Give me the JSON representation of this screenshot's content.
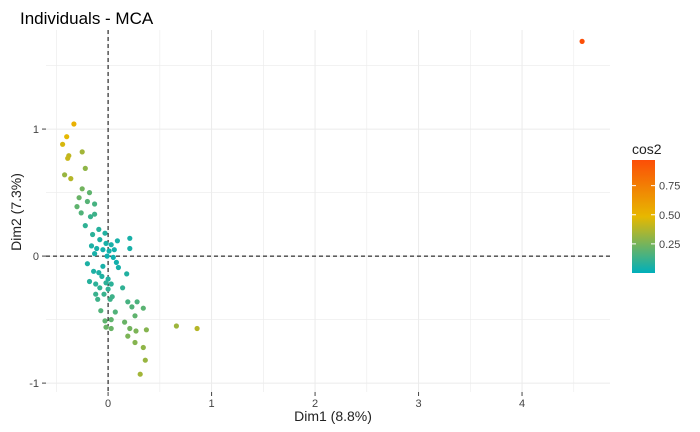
{
  "chart_data": {
    "type": "scatter",
    "title": "Individuals - MCA",
    "xlabel": "Dim1 (8.8%)",
    "ylabel": "Dim2 (7.3%)",
    "xlim": [
      -0.6,
      4.85
    ],
    "ylim": [
      -1.07,
      1.78
    ],
    "x_ticks": [
      0,
      1,
      2,
      3,
      4
    ],
    "y_ticks": [
      -1,
      0,
      1
    ],
    "grid": true,
    "reference_lines": {
      "x": 0,
      "y": 0,
      "style": "dashed"
    },
    "color_variable": "cos2",
    "legend": {
      "title": "cos2",
      "placement": "right",
      "ticks": [
        0.25,
        0.5,
        0.75
      ],
      "tick_labels": [
        "0.25",
        "0.50",
        "0.75"
      ],
      "range": [
        0.0,
        0.97
      ]
    },
    "color_scale": [
      "#00AFBB",
      "#E7B800",
      "#FC4E07"
    ],
    "points": [
      {
        "x": 4.58,
        "y": 1.69,
        "cos2": 0.97
      },
      {
        "x": -0.33,
        "y": 1.04,
        "cos2": 0.52
      },
      {
        "x": -0.4,
        "y": 0.94,
        "cos2": 0.48
      },
      {
        "x": -0.44,
        "y": 0.88,
        "cos2": 0.45
      },
      {
        "x": -0.38,
        "y": 0.79,
        "cos2": 0.4
      },
      {
        "x": -0.39,
        "y": 0.77,
        "cos2": 0.42
      },
      {
        "x": -0.25,
        "y": 0.82,
        "cos2": 0.34
      },
      {
        "x": -0.22,
        "y": 0.69,
        "cos2": 0.3
      },
      {
        "x": -0.42,
        "y": 0.64,
        "cos2": 0.32
      },
      {
        "x": -0.36,
        "y": 0.61,
        "cos2": 0.38
      },
      {
        "x": -0.25,
        "y": 0.53,
        "cos2": 0.24
      },
      {
        "x": -0.18,
        "y": 0.5,
        "cos2": 0.2
      },
      {
        "x": -0.28,
        "y": 0.46,
        "cos2": 0.22
      },
      {
        "x": -0.2,
        "y": 0.43,
        "cos2": 0.18
      },
      {
        "x": -0.3,
        "y": 0.39,
        "cos2": 0.2
      },
      {
        "x": -0.13,
        "y": 0.41,
        "cos2": 0.15
      },
      {
        "x": -0.26,
        "y": 0.34,
        "cos2": 0.17
      },
      {
        "x": -0.17,
        "y": 0.31,
        "cos2": 0.12
      },
      {
        "x": -0.13,
        "y": 0.33,
        "cos2": 0.13
      },
      {
        "x": -0.22,
        "y": 0.24,
        "cos2": 0.1
      },
      {
        "x": -0.09,
        "y": 0.21,
        "cos2": 0.08
      },
      {
        "x": -0.03,
        "y": 0.18,
        "cos2": 0.07
      },
      {
        "x": -0.15,
        "y": 0.17,
        "cos2": 0.09
      },
      {
        "x": 0.21,
        "y": 0.14,
        "cos2": 0.05
      },
      {
        "x": -0.08,
        "y": 0.13,
        "cos2": 0.06
      },
      {
        "x": -0.02,
        "y": 0.1,
        "cos2": 0.05
      },
      {
        "x": 0.03,
        "y": 0.09,
        "cos2": 0.05
      },
      {
        "x": 0.09,
        "y": 0.12,
        "cos2": 0.05
      },
      {
        "x": -0.16,
        "y": 0.08,
        "cos2": 0.06
      },
      {
        "x": -0.11,
        "y": 0.06,
        "cos2": 0.05
      },
      {
        "x": -0.05,
        "y": 0.05,
        "cos2": 0.04
      },
      {
        "x": 0.01,
        "y": 0.04,
        "cos2": 0.04
      },
      {
        "x": 0.06,
        "y": 0.05,
        "cos2": 0.04
      },
      {
        "x": 0.21,
        "y": 0.06,
        "cos2": 0.05
      },
      {
        "x": -0.13,
        "y": 0.02,
        "cos2": 0.05
      },
      {
        "x": -0.01,
        "y": 0.0,
        "cos2": 0.03
      },
      {
        "x": 0.05,
        "y": -0.01,
        "cos2": 0.03
      },
      {
        "x": 0.08,
        "y": -0.05,
        "cos2": 0.04
      },
      {
        "x": -0.2,
        "y": -0.06,
        "cos2": 0.06
      },
      {
        "x": -0.05,
        "y": -0.08,
        "cos2": 0.05
      },
      {
        "x": 0.1,
        "y": -0.09,
        "cos2": 0.05
      },
      {
        "x": -0.14,
        "y": -0.12,
        "cos2": 0.06
      },
      {
        "x": -0.09,
        "y": -0.13,
        "cos2": 0.06
      },
      {
        "x": 0.18,
        "y": -0.14,
        "cos2": 0.07
      },
      {
        "x": -0.06,
        "y": -0.16,
        "cos2": 0.07
      },
      {
        "x": 0.0,
        "y": -0.18,
        "cos2": 0.07
      },
      {
        "x": -0.18,
        "y": -0.2,
        "cos2": 0.08
      },
      {
        "x": -0.12,
        "y": -0.22,
        "cos2": 0.09
      },
      {
        "x": -0.02,
        "y": -0.21,
        "cos2": 0.09
      },
      {
        "x": 0.03,
        "y": -0.22,
        "cos2": 0.09
      },
      {
        "x": -0.08,
        "y": -0.25,
        "cos2": 0.1
      },
      {
        "x": 0.0,
        "y": -0.26,
        "cos2": 0.1
      },
      {
        "x": 0.14,
        "y": -0.25,
        "cos2": 0.1
      },
      {
        "x": -0.12,
        "y": -0.3,
        "cos2": 0.12
      },
      {
        "x": -0.04,
        "y": -0.3,
        "cos2": 0.12
      },
      {
        "x": 0.04,
        "y": -0.32,
        "cos2": 0.13
      },
      {
        "x": -0.1,
        "y": -0.34,
        "cos2": 0.13
      },
      {
        "x": 0.02,
        "y": -0.34,
        "cos2": 0.13
      },
      {
        "x": 0.19,
        "y": -0.36,
        "cos2": 0.15
      },
      {
        "x": 0.28,
        "y": -0.36,
        "cos2": 0.16
      },
      {
        "x": 0.23,
        "y": -0.4,
        "cos2": 0.17
      },
      {
        "x": 0.34,
        "y": -0.41,
        "cos2": 0.19
      },
      {
        "x": -0.07,
        "y": -0.43,
        "cos2": 0.17
      },
      {
        "x": 0.07,
        "y": -0.44,
        "cos2": 0.17
      },
      {
        "x": 0.26,
        "y": -0.47,
        "cos2": 0.2
      },
      {
        "x": -0.03,
        "y": -0.51,
        "cos2": 0.2
      },
      {
        "x": 0.03,
        "y": -0.5,
        "cos2": 0.2
      },
      {
        "x": 0.16,
        "y": -0.52,
        "cos2": 0.22
      },
      {
        "x": -0.02,
        "y": -0.56,
        "cos2": 0.22
      },
      {
        "x": 0.03,
        "y": -0.57,
        "cos2": 0.22
      },
      {
        "x": 0.21,
        "y": -0.57,
        "cos2": 0.24
      },
      {
        "x": 0.27,
        "y": -0.59,
        "cos2": 0.26
      },
      {
        "x": 0.37,
        "y": -0.58,
        "cos2": 0.28
      },
      {
        "x": 0.66,
        "y": -0.55,
        "cos2": 0.33
      },
      {
        "x": 0.86,
        "y": -0.57,
        "cos2": 0.38
      },
      {
        "x": 0.19,
        "y": -0.63,
        "cos2": 0.26
      },
      {
        "x": 0.26,
        "y": -0.68,
        "cos2": 0.28
      },
      {
        "x": 0.34,
        "y": -0.72,
        "cos2": 0.3
      },
      {
        "x": 0.36,
        "y": -0.82,
        "cos2": 0.32
      },
      {
        "x": 0.31,
        "y": -0.93,
        "cos2": 0.34
      }
    ]
  }
}
